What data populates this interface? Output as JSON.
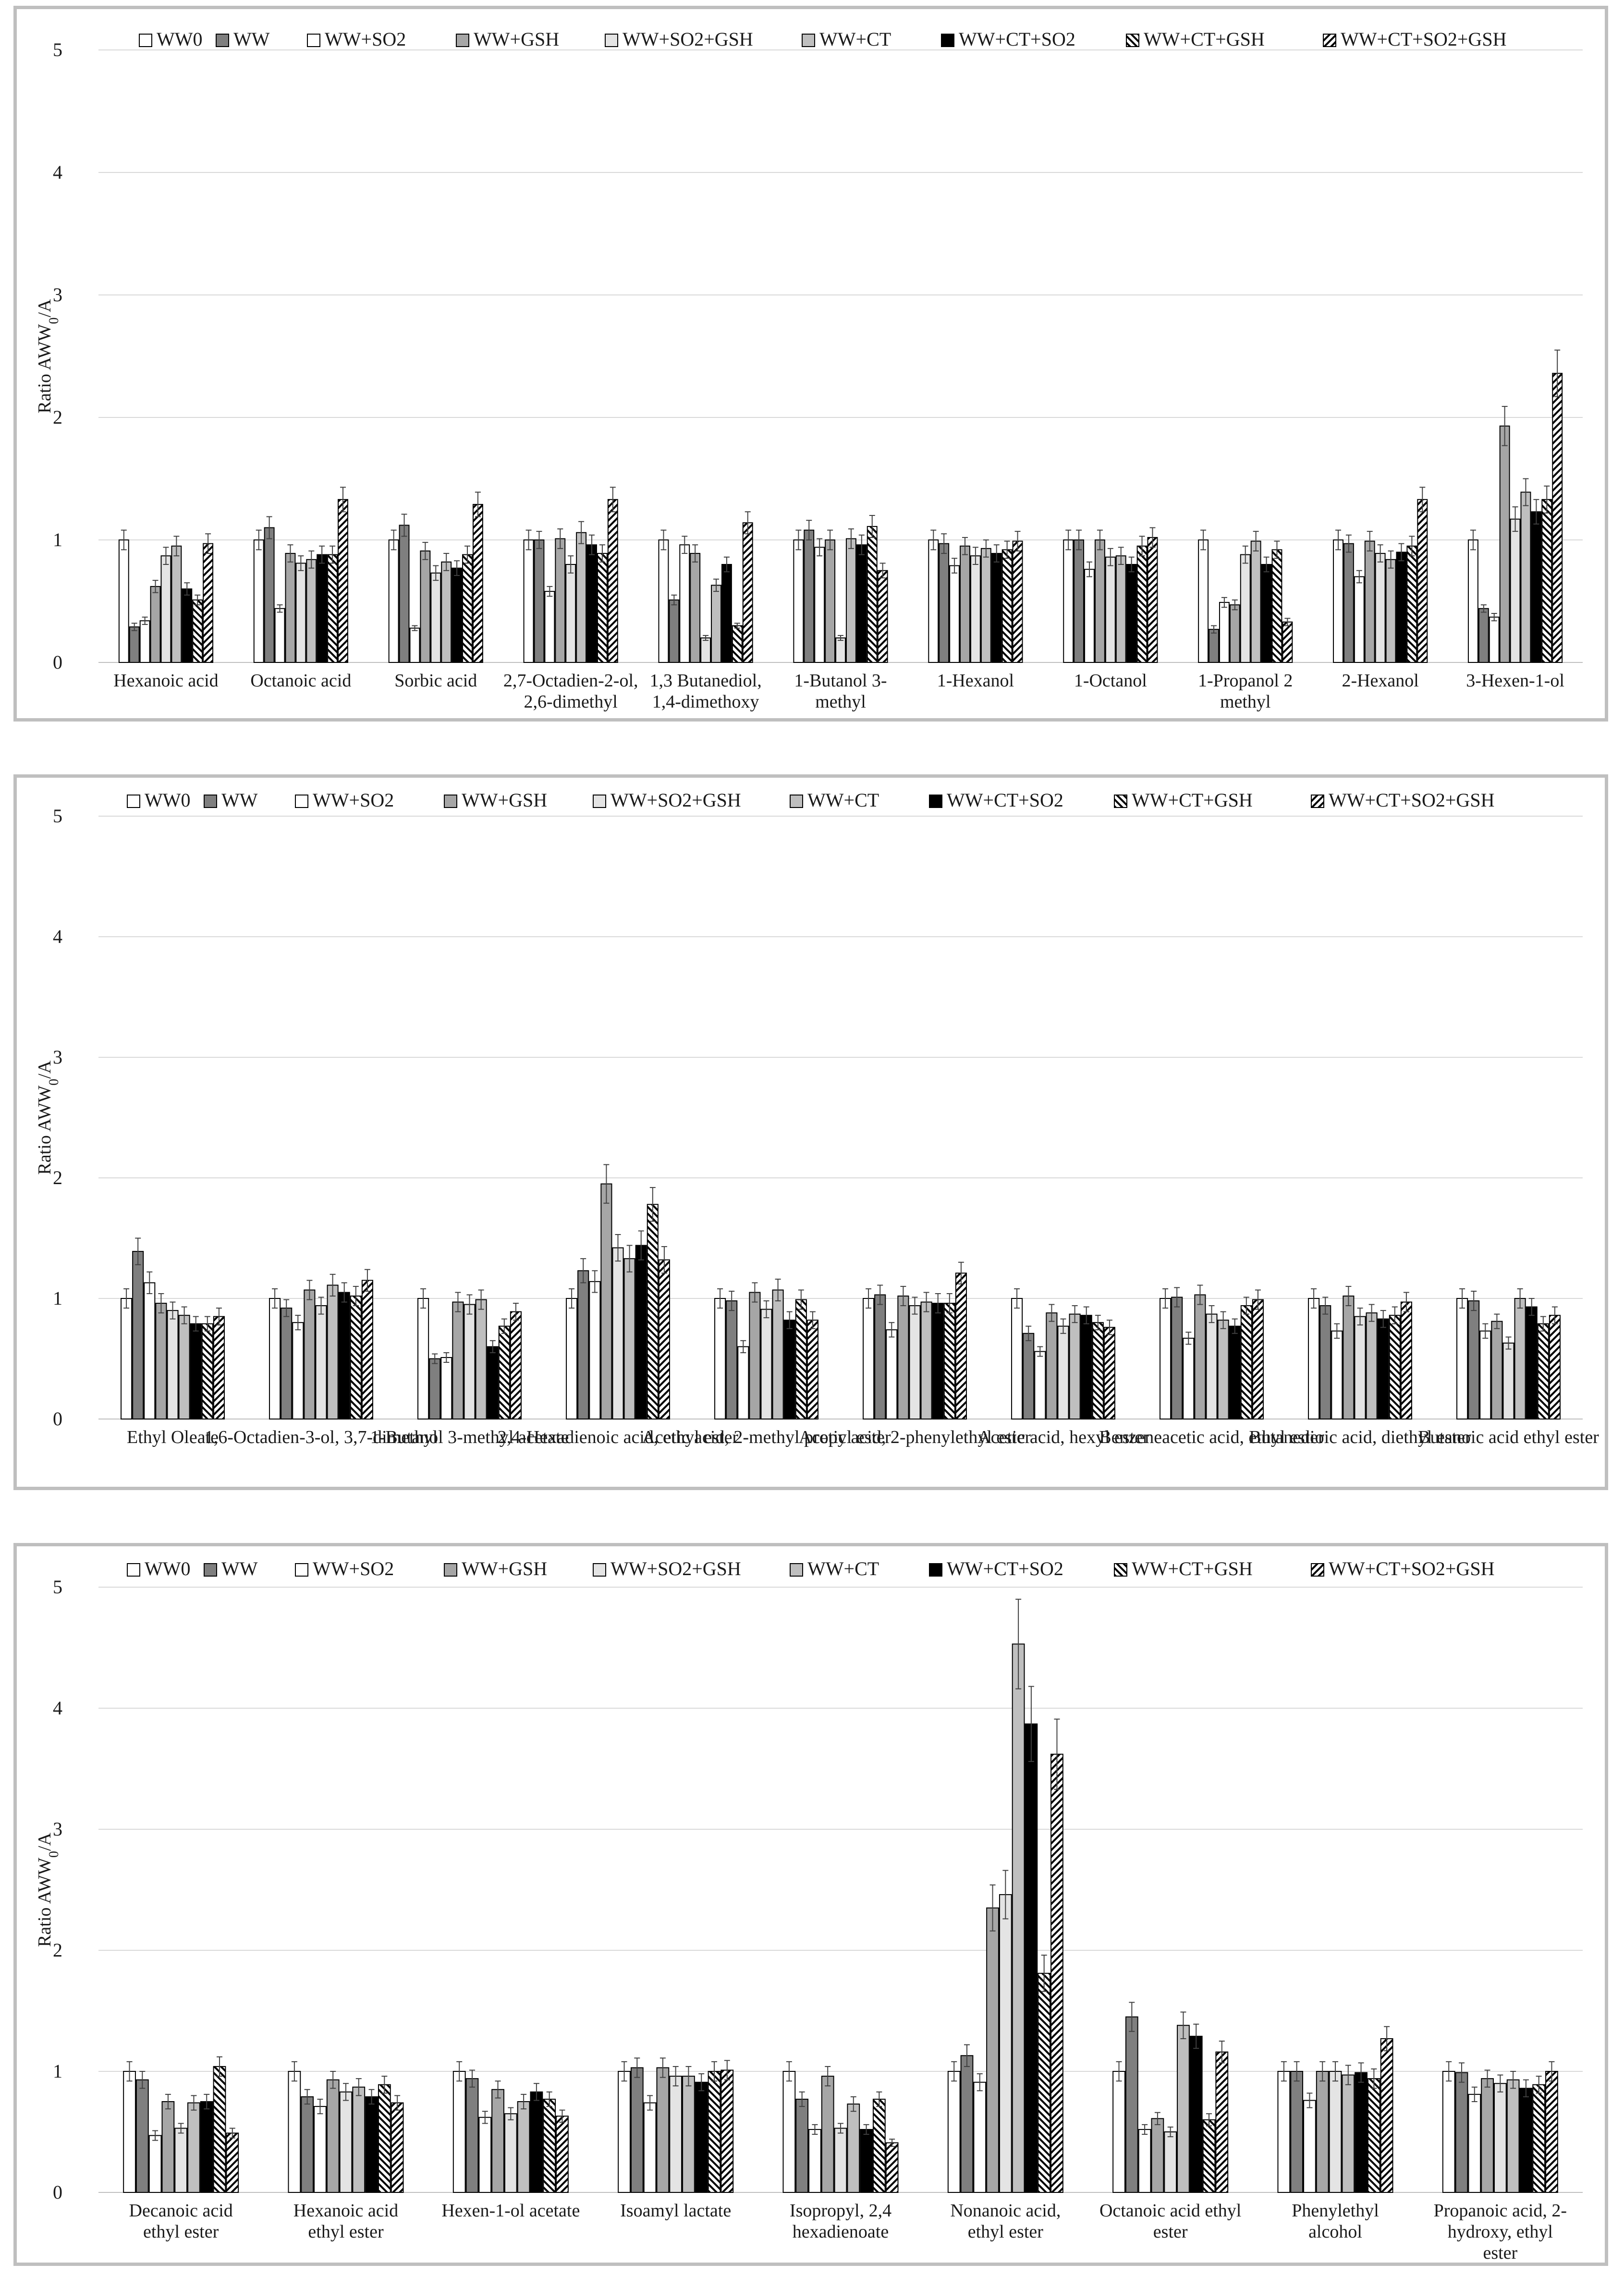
{
  "legend_labels": [
    "WW0",
    "WW",
    "WW+SO2",
    "WW+GSH",
    "WW+SO2+GSH",
    "WW+CT",
    "WW+CT+SO2",
    "WW+CT+GSH",
    "WW+CT+SO2+GSH"
  ],
  "colors": {
    "WW0": "#ffffff",
    "WW": "#7f7f7f",
    "WW+SO2": "#ffffff",
    "WW+GSH": "#a6a6a6",
    "WW+SO2+GSH": "#e4e4e4",
    "WW+CT": "#bfbfbf",
    "WW+CT+SO2": "#000000",
    "WW+CT+GSH": "hatch-back",
    "WW+CT+SO2+GSH": "hatch-forward",
    "frame": "#bfbfbf",
    "grid": "#d9d9d9"
  },
  "chart_data": [
    {
      "type": "bar",
      "ylabel": "Ratio AWW0/A",
      "ylim": [
        0,
        5
      ],
      "yticks": [
        "0",
        "1",
        "2",
        "3",
        "4",
        "5"
      ],
      "legend_position": "top",
      "categories": [
        [
          "Hexanoic acid"
        ],
        [
          "Octanoic acid"
        ],
        [
          "Sorbic acid"
        ],
        [
          "2,7-Octadien-2-ol,",
          "2,6-dimethyl"
        ],
        [
          "1,3 Butanediol,",
          "1,4-dimethoxy"
        ],
        [
          "1-Butanol 3-",
          "methyl"
        ],
        [
          "1-Hexanol"
        ],
        [
          "1-Octanol"
        ],
        [
          "1-Propanol 2",
          "methyl"
        ],
        [
          "2-Hexanol"
        ],
        [
          "3-Hexen-1-ol"
        ]
      ],
      "series": [
        {
          "name": "WW0",
          "values": [
            1.0,
            1.0,
            1.0,
            1.0,
            1.0,
            1.0,
            1.0,
            1.0,
            1.0,
            1.0,
            1.0
          ],
          "errors": [
            0.08,
            0.08,
            0.08,
            0.08,
            0.08,
            0.08,
            0.08,
            0.08,
            0.08,
            0.08,
            0.08
          ]
        },
        {
          "name": "WW",
          "values": [
            0.29,
            1.1,
            1.12,
            1.0,
            0.51,
            1.08,
            0.97,
            1.0,
            0.27,
            0.97,
            0.44
          ],
          "errors": [
            0.03,
            0.09,
            0.09,
            0.07,
            0.04,
            0.08,
            0.08,
            0.08,
            0.03,
            0.07,
            0.03
          ]
        },
        {
          "name": "WW+SO2",
          "values": [
            0.34,
            0.44,
            0.28,
            0.58,
            0.96,
            0.94,
            0.79,
            0.76,
            0.49,
            0.7,
            0.37
          ],
          "errors": [
            0.03,
            0.03,
            0.02,
            0.04,
            0.07,
            0.07,
            0.06,
            0.06,
            0.04,
            0.05,
            0.03
          ]
        },
        {
          "name": "WW+GSH",
          "values": [
            0.62,
            0.89,
            0.91,
            1.01,
            0.89,
            1.0,
            0.95,
            1.0,
            0.47,
            0.99,
            1.93
          ],
          "errors": [
            0.05,
            0.07,
            0.07,
            0.08,
            0.07,
            0.08,
            0.07,
            0.08,
            0.04,
            0.08,
            0.16
          ]
        },
        {
          "name": "WW+SO2+GSH",
          "values": [
            0.87,
            0.81,
            0.73,
            0.8,
            0.2,
            0.2,
            0.87,
            0.86,
            0.88,
            0.89,
            1.17
          ],
          "errors": [
            0.07,
            0.06,
            0.06,
            0.07,
            0.02,
            0.02,
            0.07,
            0.07,
            0.07,
            0.07,
            0.1
          ]
        },
        {
          "name": "WW+CT",
          "values": [
            0.95,
            0.84,
            0.82,
            1.06,
            0.63,
            1.01,
            0.93,
            0.87,
            0.99,
            0.84,
            1.39
          ],
          "errors": [
            0.08,
            0.07,
            0.07,
            0.09,
            0.05,
            0.08,
            0.07,
            0.07,
            0.08,
            0.07,
            0.11
          ]
        },
        {
          "name": "WW+CT+SO2",
          "values": [
            0.6,
            0.88,
            0.77,
            0.96,
            0.8,
            0.96,
            0.89,
            0.8,
            0.8,
            0.9,
            1.23
          ],
          "errors": [
            0.05,
            0.07,
            0.06,
            0.08,
            0.06,
            0.08,
            0.07,
            0.06,
            0.06,
            0.07,
            0.1
          ]
        },
        {
          "name": "WW+CT+GSH",
          "values": [
            0.51,
            0.88,
            0.88,
            0.89,
            0.3,
            1.11,
            0.92,
            0.95,
            0.92,
            0.95,
            1.33
          ],
          "errors": [
            0.04,
            0.07,
            0.07,
            0.07,
            0.02,
            0.09,
            0.07,
            0.08,
            0.07,
            0.08,
            0.11
          ]
        },
        {
          "name": "WW+CT+SO2+GSH",
          "values": [
            0.97,
            1.33,
            1.29,
            1.33,
            1.14,
            0.75,
            0.99,
            1.02,
            0.33,
            1.33,
            2.36
          ],
          "errors": [
            0.08,
            0.1,
            0.1,
            0.1,
            0.09,
            0.06,
            0.08,
            0.08,
            0.03,
            0.1,
            0.19
          ]
        }
      ]
    },
    {
      "type": "bar",
      "ylabel": "Ratio AWW0/A",
      "ylim": [
        0,
        5
      ],
      "yticks": [
        "0",
        "1",
        "2",
        "3",
        "4",
        "5"
      ],
      "legend_position": "top",
      "categories": [
        [
          "Ethyl Oleate"
        ],
        [
          "1,6-Octadien-3-ol, 3,7-dimethyl"
        ],
        [
          "1-Butanol 3-methyl acetate"
        ],
        [
          "2,4-Hexadienoic acid, ethyl ester"
        ],
        [
          "Acetic acid, 2-methyl propyl ester"
        ],
        [
          "Acetic acid, 2-phenylethyl ester"
        ],
        [
          "Acetic acid, hexyl ester"
        ],
        [
          "Benzeneacetic acid, ethyl ester"
        ],
        [
          "Butanedioic acid, diethyl ester"
        ],
        [
          "Butanoic acid ethyl ester"
        ]
      ],
      "series": [
        {
          "name": "WW0",
          "values": [
            1.0,
            1.0,
            1.0,
            1.0,
            1.0,
            1.0,
            1.0,
            1.0,
            1.0,
            1.0
          ],
          "errors": [
            0.08,
            0.08,
            0.08,
            0.08,
            0.08,
            0.08,
            0.08,
            0.08,
            0.08,
            0.08
          ]
        },
        {
          "name": "WW",
          "values": [
            1.39,
            0.92,
            0.5,
            1.23,
            0.98,
            1.03,
            0.71,
            1.01,
            0.94,
            0.98
          ],
          "errors": [
            0.11,
            0.07,
            0.04,
            0.1,
            0.08,
            0.08,
            0.06,
            0.08,
            0.07,
            0.08
          ]
        },
        {
          "name": "WW+SO2",
          "values": [
            1.13,
            0.8,
            0.51,
            1.14,
            0.6,
            0.74,
            0.56,
            0.67,
            0.73,
            0.73
          ],
          "errors": [
            0.09,
            0.06,
            0.04,
            0.09,
            0.05,
            0.06,
            0.04,
            0.05,
            0.06,
            0.06
          ]
        },
        {
          "name": "WW+GSH",
          "values": [
            0.96,
            1.07,
            0.97,
            1.95,
            1.05,
            1.02,
            0.88,
            1.03,
            1.02,
            0.81
          ],
          "errors": [
            0.08,
            0.08,
            0.08,
            0.16,
            0.08,
            0.08,
            0.07,
            0.08,
            0.08,
            0.06
          ]
        },
        {
          "name": "WW+SO2+GSH",
          "values": [
            0.9,
            0.94,
            0.95,
            1.42,
            0.91,
            0.94,
            0.77,
            0.87,
            0.85,
            0.63
          ],
          "errors": [
            0.07,
            0.07,
            0.08,
            0.11,
            0.07,
            0.07,
            0.06,
            0.07,
            0.07,
            0.05
          ]
        },
        {
          "name": "WW+CT",
          "values": [
            0.86,
            1.11,
            0.99,
            1.33,
            1.07,
            0.97,
            0.87,
            0.82,
            0.88,
            1.0
          ],
          "errors": [
            0.07,
            0.09,
            0.08,
            0.11,
            0.09,
            0.08,
            0.07,
            0.07,
            0.07,
            0.08
          ]
        },
        {
          "name": "WW+CT+SO2",
          "values": [
            0.79,
            1.05,
            0.6,
            1.44,
            0.82,
            0.96,
            0.86,
            0.77,
            0.83,
            0.93
          ],
          "errors": [
            0.06,
            0.08,
            0.05,
            0.12,
            0.07,
            0.08,
            0.07,
            0.06,
            0.07,
            0.07
          ]
        },
        {
          "name": "WW+CT+GSH",
          "values": [
            0.79,
            1.02,
            0.77,
            1.78,
            0.99,
            0.96,
            0.8,
            0.94,
            0.86,
            0.79
          ],
          "errors": [
            0.06,
            0.08,
            0.06,
            0.14,
            0.08,
            0.08,
            0.06,
            0.07,
            0.07,
            0.06
          ]
        },
        {
          "name": "WW+CT+SO2+GSH",
          "values": [
            0.85,
            1.15,
            0.89,
            1.32,
            0.82,
            1.21,
            0.76,
            0.99,
            0.97,
            0.86
          ],
          "errors": [
            0.07,
            0.09,
            0.07,
            0.11,
            0.07,
            0.09,
            0.06,
            0.08,
            0.08,
            0.07
          ]
        }
      ]
    },
    {
      "type": "bar",
      "ylabel": "Ratio AWW0/A",
      "ylim": [
        0,
        5
      ],
      "yticks": [
        "0",
        "1",
        "2",
        "3",
        "4",
        "5"
      ],
      "legend_position": "top",
      "categories": [
        [
          "Decanoic acid",
          "ethyl ester"
        ],
        [
          "Hexanoic acid",
          "ethyl ester"
        ],
        [
          "Hexen-1-ol acetate"
        ],
        [
          "Isoamyl lactate"
        ],
        [
          "Isopropyl, 2,4",
          "hexadienoate"
        ],
        [
          "Nonanoic acid,",
          "ethyl ester"
        ],
        [
          "Octanoic acid ethyl",
          "ester"
        ],
        [
          "Phenylethyl",
          "alcohol"
        ],
        [
          "Propanoic acid, 2-",
          "hydroxy, ethyl",
          "ester"
        ]
      ],
      "series": [
        {
          "name": "WW0",
          "values": [
            1.0,
            1.0,
            1.0,
            1.0,
            1.0,
            1.0,
            1.0,
            1.0,
            1.0
          ],
          "errors": [
            0.08,
            0.08,
            0.08,
            0.08,
            0.08,
            0.08,
            0.08,
            0.08,
            0.08
          ]
        },
        {
          "name": "WW",
          "values": [
            0.93,
            0.79,
            0.94,
            1.03,
            0.77,
            1.13,
            1.45,
            1.0,
            0.99
          ],
          "errors": [
            0.07,
            0.06,
            0.07,
            0.08,
            0.06,
            0.09,
            0.12,
            0.08,
            0.08
          ]
        },
        {
          "name": "WW+SO2",
          "values": [
            0.47,
            0.71,
            0.62,
            0.74,
            0.52,
            0.91,
            0.52,
            0.76,
            0.81
          ],
          "errors": [
            0.04,
            0.06,
            0.05,
            0.06,
            0.04,
            0.07,
            0.04,
            0.06,
            0.06
          ]
        },
        {
          "name": "WW+GSH",
          "values": [
            0.75,
            0.93,
            0.85,
            1.03,
            0.96,
            2.35,
            0.61,
            1.0,
            0.94
          ],
          "errors": [
            0.06,
            0.07,
            0.07,
            0.08,
            0.08,
            0.19,
            0.05,
            0.08,
            0.07
          ]
        },
        {
          "name": "WW+SO2+GSH",
          "values": [
            0.53,
            0.83,
            0.65,
            0.96,
            0.53,
            2.46,
            0.5,
            1.0,
            0.9
          ],
          "errors": [
            0.04,
            0.07,
            0.05,
            0.08,
            0.04,
            0.2,
            0.04,
            0.08,
            0.07
          ]
        },
        {
          "name": "WW+CT",
          "values": [
            0.74,
            0.87,
            0.75,
            0.96,
            0.73,
            4.53,
            1.38,
            0.97,
            0.93
          ],
          "errors": [
            0.06,
            0.07,
            0.06,
            0.08,
            0.06,
            0.37,
            0.11,
            0.08,
            0.07
          ]
        },
        {
          "name": "WW+CT+SO2",
          "values": [
            0.75,
            0.79,
            0.83,
            0.91,
            0.52,
            3.87,
            1.29,
            0.99,
            0.86
          ],
          "errors": [
            0.06,
            0.06,
            0.07,
            0.07,
            0.04,
            0.31,
            0.1,
            0.08,
            0.07
          ]
        },
        {
          "name": "WW+CT+GSH",
          "values": [
            1.04,
            0.89,
            0.77,
            1.0,
            0.77,
            1.81,
            0.6,
            0.94,
            0.89
          ],
          "errors": [
            0.08,
            0.07,
            0.06,
            0.08,
            0.06,
            0.15,
            0.05,
            0.08,
            0.07
          ]
        },
        {
          "name": "WW+CT+SO2+GSH",
          "values": [
            0.49,
            0.74,
            0.63,
            1.01,
            0.41,
            3.62,
            1.16,
            1.27,
            1.0
          ],
          "errors": [
            0.04,
            0.06,
            0.05,
            0.08,
            0.03,
            0.29,
            0.09,
            0.1,
            0.08
          ]
        }
      ]
    }
  ]
}
